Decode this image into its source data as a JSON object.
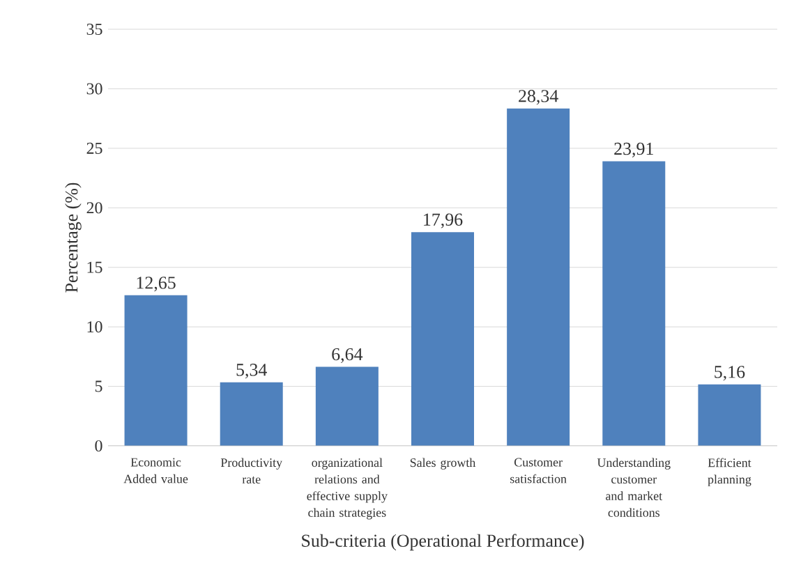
{
  "chart_data": {
    "type": "bar",
    "xlabel": "Sub-criteria (Operational Performance)",
    "ylabel": "Percentage (%)",
    "categories": [
      "Economic Added value",
      "Productivity rate",
      "organizational relations and effective supply chain strategies",
      "Sales growth",
      "Customer satisfaction",
      "Understanding customer and market conditions",
      "Efficient planning"
    ],
    "values": [
      12.65,
      5.34,
      6.64,
      17.96,
      28.34,
      23.91,
      5.16
    ],
    "value_labels": [
      "12,65",
      "5,34",
      "6,64",
      "17,96",
      "28,34",
      "23,91",
      "5,16"
    ],
    "color": "#4f81bd",
    "ylim": [
      0,
      35
    ],
    "yticks": [
      0,
      5,
      10,
      15,
      20,
      25,
      30,
      35
    ],
    "grid": "y"
  }
}
